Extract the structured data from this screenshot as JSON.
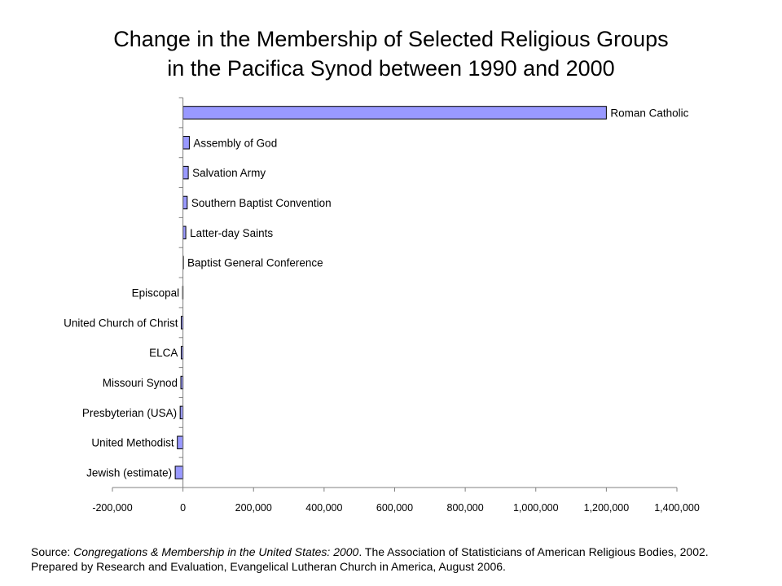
{
  "chart_data": {
    "type": "bar",
    "orientation": "horizontal",
    "title_line1": "Change in the Membership of Selected Religious Groups",
    "title_line2": "in the Pacifica Synod between 1990 and 2000",
    "xlabel": "",
    "ylabel": "",
    "xlim": [
      -200000,
      1400000
    ],
    "xticks": [
      -200000,
      0,
      200000,
      400000,
      600000,
      800000,
      1000000,
      1200000,
      1400000
    ],
    "xtick_labels": [
      "-200,000",
      "0",
      "200,000",
      "400,000",
      "600,000",
      "800,000",
      "1,000,000",
      "1,200,000",
      "1,400,000"
    ],
    "bar_color": "#9999ff",
    "bar_edge_color": "#000000",
    "grid": false,
    "legend": "none",
    "categories": [
      "Roman Catholic",
      "Assembly of God",
      "Salvation Army",
      "Southern Baptist Convention",
      "Latter-day Saints",
      "Baptist General Conference",
      "Episcopal",
      "United Church of Christ",
      "ELCA",
      "Missouri Synod",
      "Presbyterian (USA)",
      "United Methodist",
      "Jewish (estimate)"
    ],
    "values": [
      1200000,
      18000,
      15000,
      12000,
      8000,
      1000,
      -1000,
      -5000,
      -5000,
      -6000,
      -8000,
      -16000,
      -22000
    ]
  },
  "source": {
    "prefix": "Source:  ",
    "italic": "Congregations & Membership in the United States:  2000",
    "rest": ". The Association of Statisticians of American Religious Bodies, 2002.  Prepared by Research and Evaluation, Evangelical Lutheran Church in America, August 2006."
  }
}
